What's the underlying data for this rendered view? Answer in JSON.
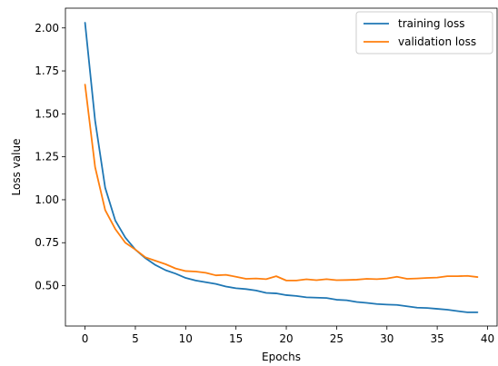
{
  "chart_data": {
    "type": "line",
    "title": "",
    "xlabel": "Epochs",
    "ylabel": "Loss value",
    "xlim": [
      -1.95,
      40.95
    ],
    "ylim": [
      0.265,
      2.115
    ],
    "grid": false,
    "legend_placement": "top-right",
    "x_ticks": [
      0,
      5,
      10,
      15,
      20,
      25,
      30,
      35,
      40
    ],
    "y_ticks": [
      0.5,
      0.75,
      1.0,
      1.25,
      1.5,
      1.75,
      2.0
    ],
    "x_tick_labels": [
      "0",
      "5",
      "10",
      "15",
      "20",
      "25",
      "30",
      "35",
      "40"
    ],
    "y_tick_labels": [
      "0.50",
      "0.75",
      "1.00",
      "1.25",
      "1.50",
      "1.75",
      "2.00"
    ],
    "x": [
      0,
      1,
      2,
      3,
      4,
      5,
      6,
      7,
      8,
      9,
      10,
      11,
      12,
      13,
      14,
      15,
      16,
      17,
      18,
      19,
      20,
      21,
      22,
      23,
      24,
      25,
      26,
      27,
      28,
      29,
      30,
      31,
      32,
      33,
      34,
      35,
      36,
      37,
      38,
      39
    ],
    "series": [
      {
        "name": "training loss",
        "color": "#1f77b4",
        "values": [
          2.03,
          1.46,
          1.07,
          0.88,
          0.78,
          0.71,
          0.66,
          0.62,
          0.59,
          0.57,
          0.545,
          0.53,
          0.52,
          0.51,
          0.495,
          0.485,
          0.48,
          0.472,
          0.458,
          0.455,
          0.445,
          0.44,
          0.432,
          0.43,
          0.428,
          0.418,
          0.415,
          0.405,
          0.4,
          0.393,
          0.39,
          0.388,
          0.38,
          0.372,
          0.37,
          0.365,
          0.36,
          0.352,
          0.345,
          0.345
        ]
      },
      {
        "name": "validation loss",
        "color": "#ff7f0e",
        "values": [
          1.67,
          1.19,
          0.94,
          0.83,
          0.75,
          0.71,
          0.665,
          0.645,
          0.625,
          0.6,
          0.585,
          0.582,
          0.575,
          0.56,
          0.563,
          0.552,
          0.54,
          0.542,
          0.538,
          0.555,
          0.53,
          0.53,
          0.537,
          0.532,
          0.538,
          0.532,
          0.533,
          0.535,
          0.54,
          0.538,
          0.542,
          0.552,
          0.54,
          0.542,
          0.545,
          0.547,
          0.555,
          0.555,
          0.557,
          0.55
        ]
      }
    ]
  }
}
